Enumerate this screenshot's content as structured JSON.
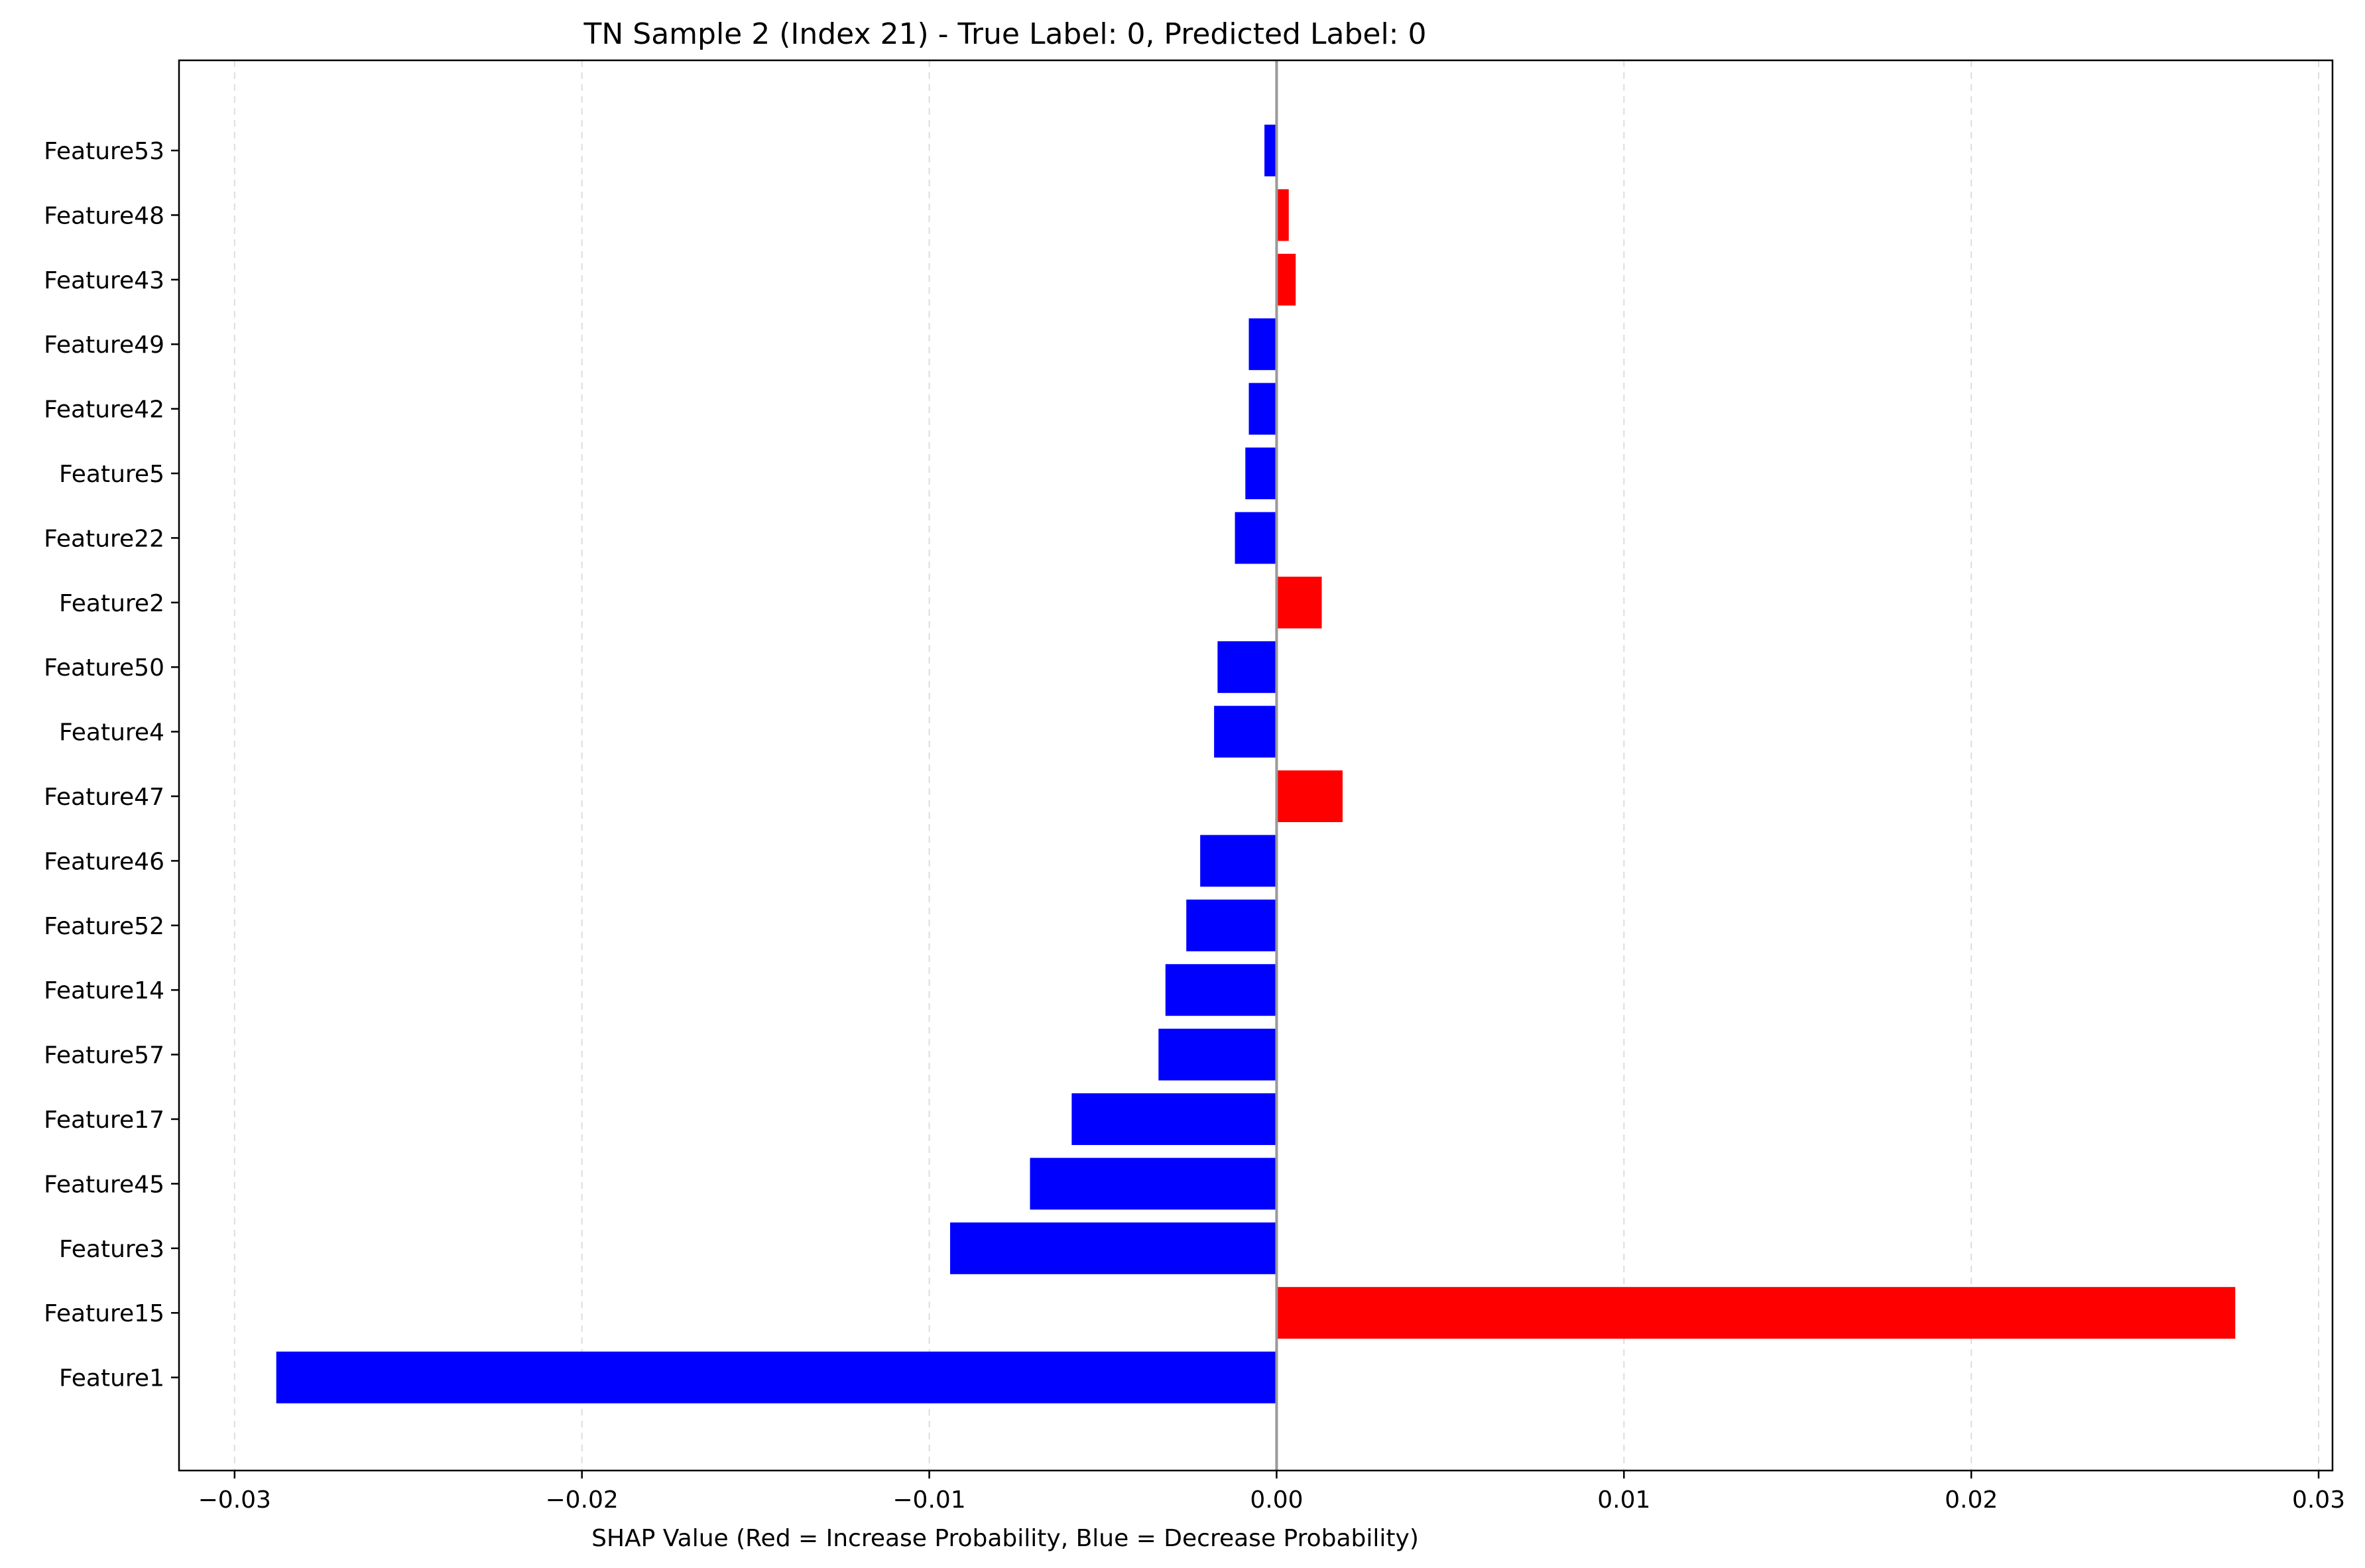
{
  "chart_data": {
    "type": "bar",
    "orientation": "horizontal",
    "title": "TN Sample 2 (Index 21) - True Label: 0, Predicted Label: 0",
    "xlabel": "SHAP Value (Red = Increase Probability, Blue = Decrease Probability)",
    "ylabel": "",
    "xlim": [
      -0.0316,
      0.0304
    ],
    "xticks": [
      -0.03,
      -0.02,
      -0.01,
      0.0,
      0.01,
      0.02,
      0.03
    ],
    "xtick_labels": [
      "−0.03",
      "−0.02",
      "−0.01",
      "0.00",
      "0.01",
      "0.02",
      "0.03"
    ],
    "grid": "x-dashed",
    "zero_line": true,
    "colors": {
      "positive": "#ff0000",
      "negative": "#0000ff",
      "grid": "#dddddd",
      "zero_line": "#999999"
    },
    "categories": [
      "Feature53",
      "Feature48",
      "Feature43",
      "Feature49",
      "Feature42",
      "Feature5",
      "Feature22",
      "Feature2",
      "Feature50",
      "Feature4",
      "Feature47",
      "Feature46",
      "Feature52",
      "Feature14",
      "Feature57",
      "Feature17",
      "Feature45",
      "Feature3",
      "Feature15",
      "Feature1"
    ],
    "values": [
      -0.00035,
      0.00035,
      0.00055,
      -0.0008,
      -0.0008,
      -0.0009,
      -0.0012,
      0.0013,
      -0.0017,
      -0.0018,
      0.0019,
      -0.0022,
      -0.0026,
      -0.0032,
      -0.0034,
      -0.0059,
      -0.0071,
      -0.0094,
      0.0276,
      -0.0288
    ]
  }
}
